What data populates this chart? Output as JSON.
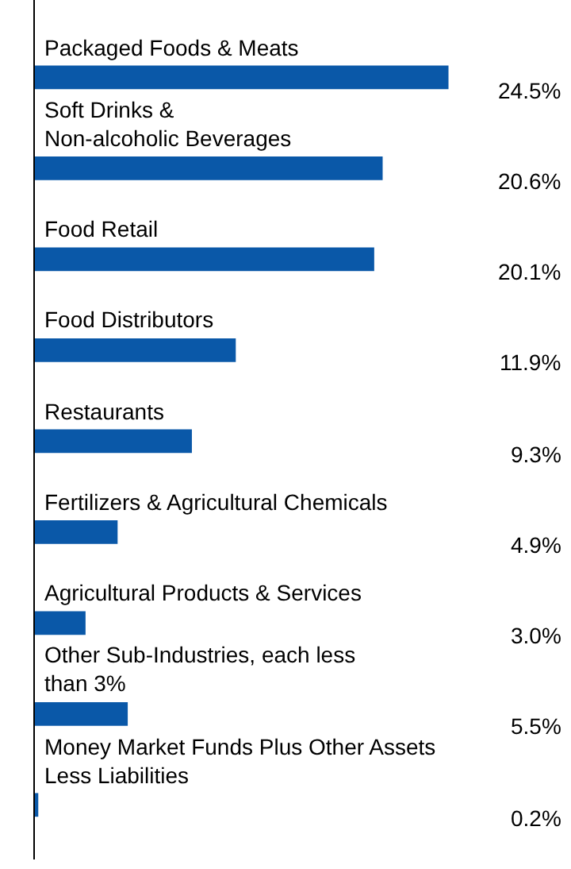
{
  "chart_data": {
    "type": "bar",
    "orientation": "horizontal",
    "categories": [
      "Packaged Foods & Meats",
      "Soft Drinks &\nNon-alcoholic Beverages",
      "Food Retail",
      "Food Distributors",
      "Restaurants",
      "Fertilizers & Agricultural Chemicals",
      "Agricultural Products & Services",
      "Other Sub-Industries, each less\nthan 3%",
      "Money Market Funds Plus Other Assets\nLess Liabilities"
    ],
    "values": [
      24.5,
      20.6,
      20.1,
      11.9,
      9.3,
      4.9,
      3.0,
      5.5,
      0.2
    ],
    "value_labels": [
      "24.5%",
      "20.6%",
      "20.1%",
      "11.9%",
      "9.3%",
      "4.9%",
      "3.0%",
      "5.5%",
      "0.2%"
    ],
    "color": "#0a58a8",
    "grid": false,
    "legend": false
  }
}
